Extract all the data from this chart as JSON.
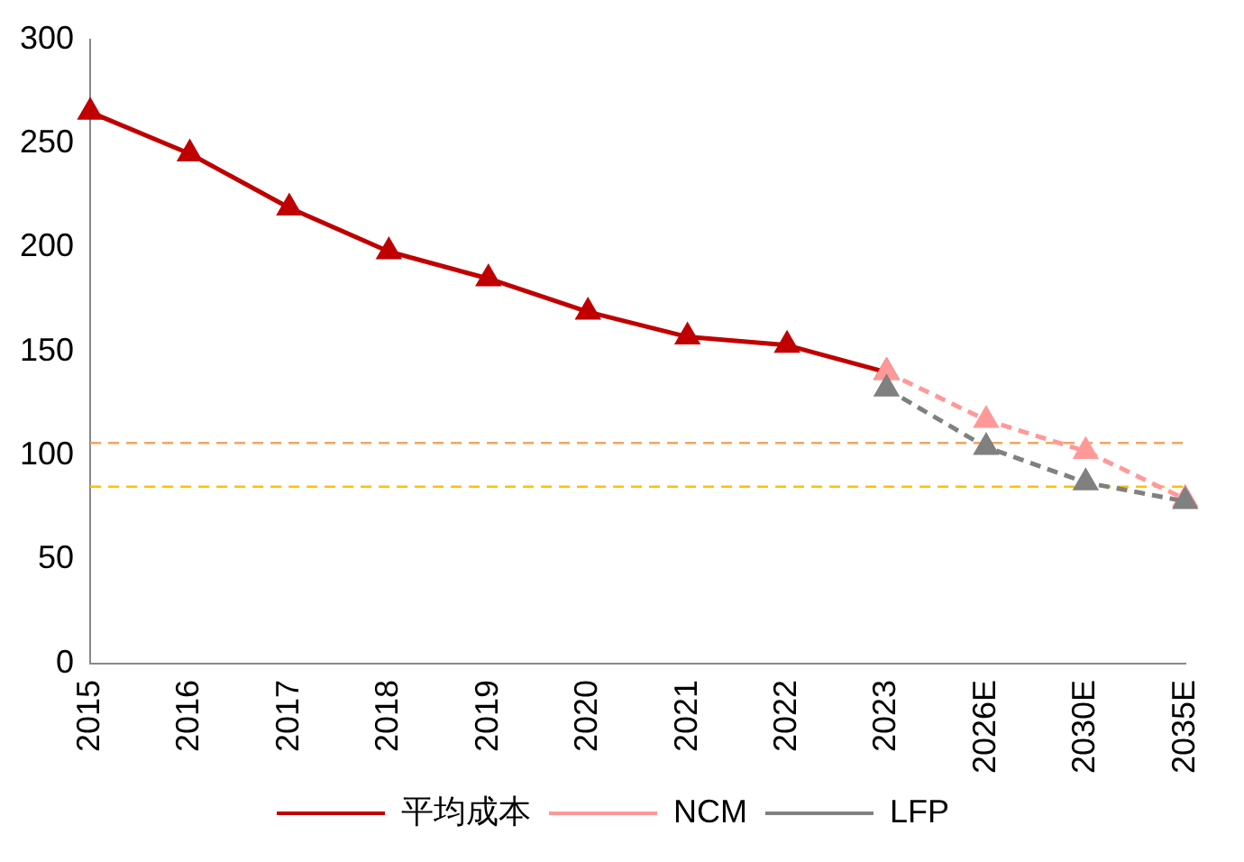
{
  "chart_data": {
    "type": "line",
    "categories": [
      "2015",
      "2016",
      "2017",
      "2018",
      "2019",
      "2020",
      "2021",
      "2022",
      "2023",
      "2026E",
      "2030E",
      "2035E"
    ],
    "series": [
      {
        "name": "平均成本",
        "color": "#c00000",
        "line_style": "solid",
        "values": [
          265,
          245,
          219,
          198,
          185,
          169,
          157,
          153,
          140,
          null,
          null,
          null
        ]
      },
      {
        "name": "NCM",
        "color": "#ff9999",
        "line_style": "dashed",
        "values": [
          null,
          null,
          null,
          null,
          null,
          null,
          null,
          null,
          140,
          117,
          102,
          79
        ]
      },
      {
        "name": "LFP",
        "color": "#808080",
        "line_style": "dashed",
        "values": [
          null,
          null,
          null,
          null,
          null,
          null,
          null,
          null,
          132,
          104,
          87,
          78
        ]
      }
    ],
    "ylim": [
      0,
      300
    ],
    "yticks": [
      0,
      50,
      100,
      150,
      200,
      250,
      300
    ],
    "grid": false,
    "legend": "bottom",
    "marker": "triangle",
    "ref_lines": [
      {
        "axis": "y",
        "value": 106,
        "color": "#f4a460",
        "line_style": "dashed"
      },
      {
        "axis": "y",
        "value": 85,
        "color": "#ffc000",
        "line_style": "dashed"
      }
    ]
  }
}
